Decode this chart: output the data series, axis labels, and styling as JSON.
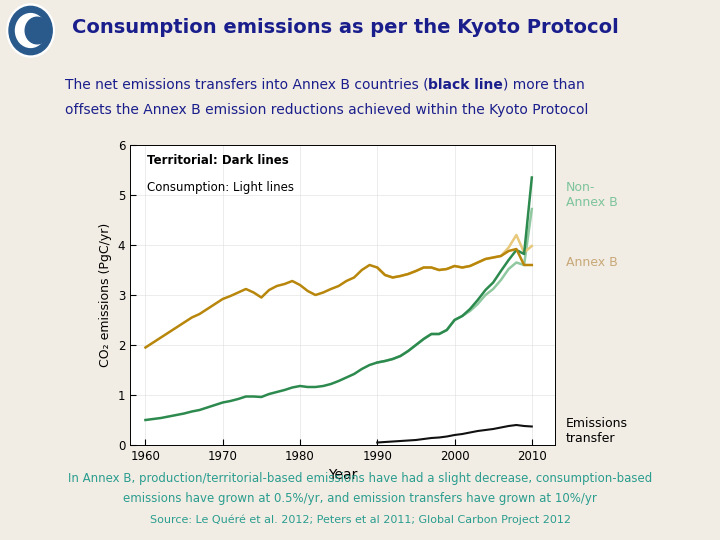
{
  "title": "Consumption emissions as per the Kyoto Protocol",
  "subtitle_line1": "The net emissions transfers into Annex B countries (black line) more than",
  "subtitle_line2": "offsets the Annex B emission reductions achieved within the Kyoto Protocol",
  "xlabel": "Year",
  "ylabel": "CO₂ emissions (PgC/yr)",
  "xlim": [
    1958,
    2013
  ],
  "ylim": [
    0,
    6
  ],
  "yticks": [
    0,
    1,
    2,
    3,
    4,
    5,
    6
  ],
  "xticks": [
    1960,
    1970,
    1980,
    1990,
    2000,
    2010
  ],
  "legend_text1": "Territorial: Dark lines",
  "legend_text2": "Consumption: Light lines",
  "label_non_annex_b": "Non-\nAnnex B",
  "label_annex_b": "Annex B",
  "label_emissions_transfer": "Emissions\ntransfer",
  "footer_line1": "In Annex B, production/territorial-based emissions have had a slight decrease, consumption-based",
  "footer_line2": "emissions have grown at 0.5%/yr, and emission transfers have grown at 10%/yr",
  "footer_line3": "Source: Le Quéré et al. 2012; Peters et al 2011; Global Carbon Project 2012",
  "bg_color": "#f2ede4",
  "header_bg": "#c8a06e",
  "plot_bg": "#ffffff",
  "title_color": "#1a1e8c",
  "subtitle_color": "#1a1e8c",
  "footer_color": "#2a9d8f",
  "footer_source_color": "#2a9d8f",
  "color_non_annex_b_dark": "#2d8a4e",
  "color_non_annex_b_light": "#90c8a0",
  "color_annex_b_dark": "#b8860b",
  "color_annex_b_light": "#e8c87a",
  "color_emissions_transfer": "#111111",
  "label_color_non_annex": "#7cc49c",
  "label_color_annex": "#c8a878",
  "years_non_annex_b_dark": [
    1960,
    1961,
    1962,
    1963,
    1964,
    1965,
    1966,
    1967,
    1968,
    1969,
    1970,
    1971,
    1972,
    1973,
    1974,
    1975,
    1976,
    1977,
    1978,
    1979,
    1980,
    1981,
    1982,
    1983,
    1984,
    1985,
    1986,
    1987,
    1988,
    1989,
    1990,
    1991,
    1992,
    1993,
    1994,
    1995,
    1996,
    1997,
    1998,
    1999,
    2000,
    2001,
    2002,
    2003,
    2004,
    2005,
    2006,
    2007,
    2008,
    2009,
    2010
  ],
  "vals_non_annex_b_dark": [
    0.5,
    0.52,
    0.54,
    0.57,
    0.6,
    0.63,
    0.67,
    0.7,
    0.75,
    0.8,
    0.85,
    0.88,
    0.92,
    0.97,
    0.97,
    0.96,
    1.02,
    1.06,
    1.1,
    1.15,
    1.18,
    1.16,
    1.16,
    1.18,
    1.22,
    1.28,
    1.35,
    1.42,
    1.52,
    1.6,
    1.65,
    1.68,
    1.72,
    1.78,
    1.88,
    2.0,
    2.12,
    2.22,
    2.22,
    2.3,
    2.5,
    2.58,
    2.72,
    2.9,
    3.1,
    3.25,
    3.48,
    3.7,
    3.9,
    3.82,
    5.35
  ],
  "years_annex_b_dark": [
    1960,
    1961,
    1962,
    1963,
    1964,
    1965,
    1966,
    1967,
    1968,
    1969,
    1970,
    1971,
    1972,
    1973,
    1974,
    1975,
    1976,
    1977,
    1978,
    1979,
    1980,
    1981,
    1982,
    1983,
    1984,
    1985,
    1986,
    1987,
    1988,
    1989,
    1990,
    1991,
    1992,
    1993,
    1994,
    1995,
    1996,
    1997,
    1998,
    1999,
    2000,
    2001,
    2002,
    2003,
    2004,
    2005,
    2006,
    2007,
    2008,
    2009,
    2010
  ],
  "vals_annex_b_dark": [
    1.95,
    2.05,
    2.15,
    2.25,
    2.35,
    2.45,
    2.55,
    2.62,
    2.72,
    2.82,
    2.92,
    2.98,
    3.05,
    3.12,
    3.05,
    2.95,
    3.1,
    3.18,
    3.22,
    3.28,
    3.2,
    3.08,
    3.0,
    3.05,
    3.12,
    3.18,
    3.28,
    3.35,
    3.5,
    3.6,
    3.55,
    3.4,
    3.35,
    3.38,
    3.42,
    3.48,
    3.55,
    3.55,
    3.5,
    3.52,
    3.58,
    3.55,
    3.58,
    3.65,
    3.72,
    3.75,
    3.78,
    3.88,
    3.92,
    3.6,
    3.6
  ],
  "years_non_annex_b_light": [
    1990,
    1991,
    1992,
    1993,
    1994,
    1995,
    1996,
    1997,
    1998,
    1999,
    2000,
    2001,
    2002,
    2003,
    2004,
    2005,
    2006,
    2007,
    2008,
    2009,
    2010
  ],
  "vals_non_annex_b_light": [
    1.65,
    1.68,
    1.72,
    1.78,
    1.88,
    2.0,
    2.12,
    2.22,
    2.22,
    2.3,
    2.5,
    2.58,
    2.68,
    2.82,
    3.0,
    3.12,
    3.3,
    3.52,
    3.65,
    3.6,
    4.72
  ],
  "years_annex_b_light": [
    1990,
    1991,
    1992,
    1993,
    1994,
    1995,
    1996,
    1997,
    1998,
    1999,
    2000,
    2001,
    2002,
    2003,
    2004,
    2005,
    2006,
    2007,
    2008,
    2009,
    2010
  ],
  "vals_annex_b_light": [
    3.55,
    3.4,
    3.35,
    3.38,
    3.42,
    3.48,
    3.55,
    3.55,
    3.5,
    3.52,
    3.58,
    3.55,
    3.58,
    3.65,
    3.72,
    3.75,
    3.78,
    3.95,
    4.2,
    3.85,
    3.98
  ],
  "years_emissions": [
    1990,
    1991,
    1992,
    1993,
    1994,
    1995,
    1996,
    1997,
    1998,
    1999,
    2000,
    2001,
    2002,
    2003,
    2004,
    2005,
    2006,
    2007,
    2008,
    2009,
    2010
  ],
  "vals_emissions": [
    0.05,
    0.06,
    0.07,
    0.08,
    0.09,
    0.1,
    0.12,
    0.14,
    0.15,
    0.17,
    0.2,
    0.22,
    0.25,
    0.28,
    0.3,
    0.32,
    0.35,
    0.38,
    0.4,
    0.38,
    0.37
  ]
}
